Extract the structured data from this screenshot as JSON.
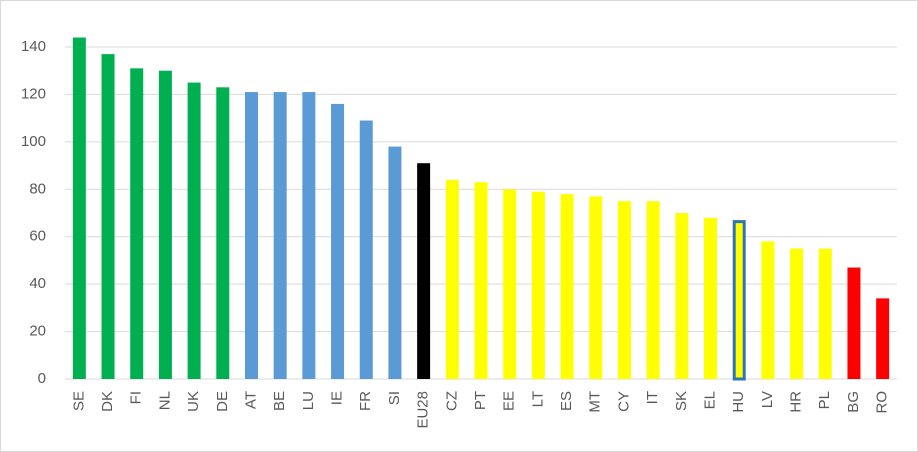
{
  "chart_data": {
    "type": "bar",
    "categories": [
      "SE",
      "DK",
      "FI",
      "NL",
      "UK",
      "DE",
      "AT",
      "BE",
      "LU",
      "IE",
      "FR",
      "SI",
      "EU28",
      "CZ",
      "PT",
      "EE",
      "LT",
      "ES",
      "MT",
      "CY",
      "IT",
      "SK",
      "EL",
      "HU",
      "LV",
      "HR",
      "PL",
      "BG",
      "RO"
    ],
    "values": [
      144,
      137,
      131,
      130,
      125,
      123,
      121,
      121,
      121,
      116,
      109,
      98,
      91,
      84,
      83,
      80,
      79,
      78,
      77,
      75,
      75,
      70,
      68,
      67,
      58,
      55,
      55,
      47,
      34
    ],
    "colors": [
      "#00b050",
      "#00b050",
      "#00b050",
      "#00b050",
      "#00b050",
      "#00b050",
      "#5b9bd5",
      "#5b9bd5",
      "#5b9bd5",
      "#5b9bd5",
      "#5b9bd5",
      "#5b9bd5",
      "#000000",
      "#ffff00",
      "#ffff00",
      "#ffff00",
      "#ffff00",
      "#ffff00",
      "#ffff00",
      "#ffff00",
      "#ffff00",
      "#ffff00",
      "#ffff00",
      "#ffff00",
      "#ffff00",
      "#ffff00",
      "#ffff00",
      "#ff0000",
      "#ff0000"
    ],
    "edge_colors": [
      null,
      null,
      null,
      null,
      null,
      null,
      null,
      null,
      null,
      null,
      null,
      null,
      null,
      null,
      null,
      null,
      null,
      null,
      null,
      null,
      null,
      null,
      null,
      "#2e75b6",
      null,
      null,
      null,
      null,
      null
    ],
    "ylim": [
      0,
      140
    ],
    "yticks": [
      0,
      20,
      40,
      60,
      80,
      100,
      120,
      140
    ],
    "grid": true
  }
}
